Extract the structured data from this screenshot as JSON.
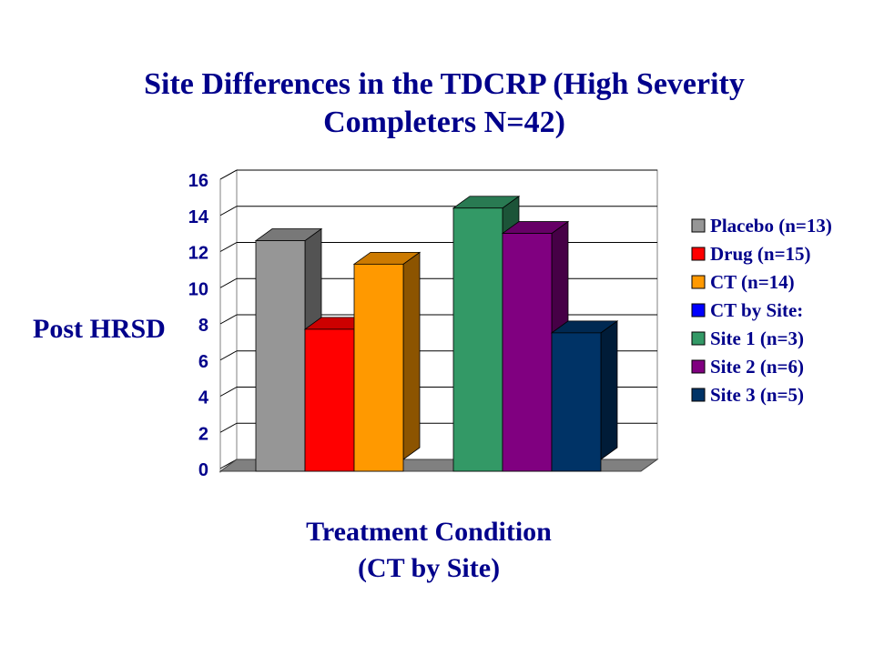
{
  "chart_data": {
    "type": "bar",
    "title_lines": [
      "Site Differences in the TDCRP (High Severity",
      "Completers N=42)"
    ],
    "ylabel": "Post HRSD",
    "xlabel_lines": [
      "Treatment Condition",
      "(CT by Site)"
    ],
    "ylim": [
      0,
      16
    ],
    "yticks": [
      "0",
      "2",
      "4",
      "6",
      "8",
      "10",
      "12",
      "14",
      "16"
    ],
    "grid": true,
    "legend_position": "right",
    "series": [
      {
        "name": "Placebo (n=13)",
        "value": 12.1,
        "color": "#969696",
        "group": 0
      },
      {
        "name": "Drug (n=15)",
        "value": 7.2,
        "color": "#ff0000",
        "group": 0
      },
      {
        "name": "CT (n=14)",
        "value": 10.8,
        "color": "#ff9900",
        "group": 0
      },
      {
        "name": "CT by Site:",
        "value": null,
        "color": "#0000ff",
        "group": null
      },
      {
        "name": "Site 1 (n=3)",
        "value": 13.9,
        "color": "#339966",
        "group": 1
      },
      {
        "name": "Site 2 (n=6)",
        "value": 12.5,
        "color": "#800080",
        "group": 1
      },
      {
        "name": "Site 3 (n=5)",
        "value": 7.0,
        "color": "#003366",
        "group": 1
      }
    ]
  }
}
